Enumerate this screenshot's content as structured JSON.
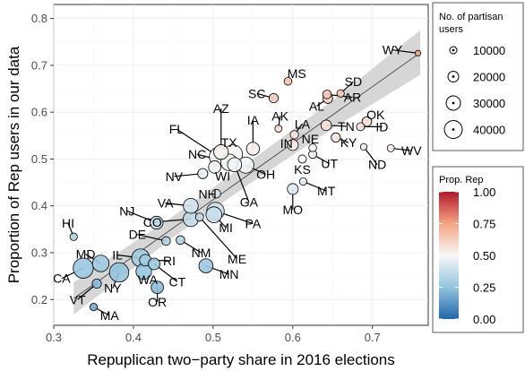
{
  "chart_data": {
    "type": "scatter",
    "xlabel": "Repuplican two−party share in 2016 elections",
    "ylabel": "Proportion of Rep users in our data",
    "xlim": [
      0.3,
      0.77
    ],
    "ylim": [
      0.145,
      0.83
    ],
    "x_ticks": [
      "0.3",
      "0.4",
      "0.5",
      "0.6",
      "0.7"
    ],
    "x_tick_values": [
      0.3,
      0.4,
      0.5,
      0.6,
      0.7
    ],
    "y_ticks": [
      "0.2",
      "0.3",
      "0.4",
      "0.5",
      "0.6",
      "0.7",
      "0.8"
    ],
    "y_tick_values": [
      0.2,
      0.3,
      0.4,
      0.5,
      0.6,
      0.7,
      0.8
    ],
    "grid": true,
    "fit_line": {
      "x": [
        0.325,
        0.76
      ],
      "y": [
        0.202,
        0.727
      ]
    },
    "confidence_band": {
      "x": [
        0.325,
        0.45,
        0.55,
        0.65,
        0.76
      ],
      "lower": [
        0.168,
        0.333,
        0.452,
        0.565,
        0.68
      ],
      "upper": [
        0.237,
        0.378,
        0.5,
        0.625,
        0.775
      ]
    },
    "size_legend": {
      "title_lines": [
        "No. of partisan",
        "users"
      ],
      "values": [
        "10000",
        "20000",
        "30000",
        "40000"
      ],
      "radii": [
        4,
        6,
        8,
        10
      ]
    },
    "color_legend": {
      "title": "Prop. Rep",
      "ticks": [
        "0.00",
        "0.25",
        "0.50",
        "0.75",
        "1.00"
      ],
      "tick_values": [
        0.0,
        0.25,
        0.5,
        0.75,
        1.0
      ],
      "low_color": "#2166ac",
      "mid_color": "#f7f7f7",
      "high_color": "#b2182b"
    },
    "points": [
      {
        "state": "WY",
        "x": 0.757,
        "y": 0.726,
        "users": 1000,
        "lx": 0.725,
        "ly": 0.733
      },
      {
        "state": "SD",
        "x": 0.66,
        "y": 0.64,
        "users": 3000,
        "lx": 0.676,
        "ly": 0.665
      },
      {
        "state": "MS",
        "x": 0.594,
        "y": 0.666,
        "users": 3500,
        "lx": 0.605,
        "ly": 0.683
      },
      {
        "state": "AR",
        "x": 0.643,
        "y": 0.638,
        "users": 5000,
        "lx": 0.675,
        "ly": 0.632
      },
      {
        "state": "AL",
        "x": 0.644,
        "y": 0.629,
        "users": 7000,
        "lx": 0.63,
        "ly": 0.613
      },
      {
        "state": "SC",
        "x": 0.576,
        "y": 0.63,
        "users": 6000,
        "lx": 0.555,
        "ly": 0.64
      },
      {
        "state": "AK",
        "x": 0.582,
        "y": 0.565,
        "users": 2500,
        "lx": 0.584,
        "ly": 0.592
      },
      {
        "state": "OK",
        "x": 0.693,
        "y": 0.58,
        "users": 7000,
        "lx": 0.704,
        "ly": 0.595
      },
      {
        "state": "TN",
        "x": 0.642,
        "y": 0.572,
        "users": 9000,
        "lx": 0.667,
        "ly": 0.57
      },
      {
        "state": "ID",
        "x": 0.685,
        "y": 0.569,
        "users": 4000,
        "lx": 0.712,
        "ly": 0.569
      },
      {
        "state": "LA",
        "x": 0.602,
        "y": 0.552,
        "users": 4500,
        "lx": 0.612,
        "ly": 0.575
      },
      {
        "state": "WV",
        "x": 0.723,
        "y": 0.523,
        "users": 2500,
        "lx": 0.749,
        "ly": 0.518
      },
      {
        "state": "KY",
        "x": 0.654,
        "y": 0.546,
        "users": 6000,
        "lx": 0.67,
        "ly": 0.535
      },
      {
        "state": "ND",
        "x": 0.689,
        "y": 0.526,
        "users": 2000,
        "lx": 0.706,
        "ly": 0.488
      },
      {
        "state": "IN",
        "x": 0.6,
        "y": 0.53,
        "users": 10000,
        "lx": 0.592,
        "ly": 0.533
      },
      {
        "state": "NE",
        "x": 0.625,
        "y": 0.524,
        "users": 3500,
        "lx": 0.622,
        "ly": 0.543
      },
      {
        "state": "UT",
        "x": 0.625,
        "y": 0.51,
        "users": 4000,
        "lx": 0.646,
        "ly": 0.49
      },
      {
        "state": "MO",
        "x": 0.6,
        "y": 0.436,
        "users": 10000,
        "lx": 0.6,
        "ly": 0.392
      },
      {
        "state": "KS",
        "x": 0.612,
        "y": 0.5,
        "users": 4000,
        "lx": 0.612,
        "ly": 0.478
      },
      {
        "state": "MT",
        "x": 0.613,
        "y": 0.452,
        "users": 3000,
        "lx": 0.642,
        "ly": 0.432
      },
      {
        "state": "IA",
        "x": 0.55,
        "y": 0.522,
        "users": 16000,
        "lx": 0.55,
        "ly": 0.583
      },
      {
        "state": "TX",
        "x": 0.525,
        "y": 0.51,
        "users": 42000,
        "lx": 0.52,
        "ly": 0.535
      },
      {
        "state": "AZ",
        "x": 0.51,
        "y": 0.515,
        "users": 22000,
        "lx": 0.51,
        "ly": 0.608
      },
      {
        "state": "FL",
        "x": 0.507,
        "y": 0.505,
        "users": 40000,
        "lx": 0.454,
        "ly": 0.564
      },
      {
        "state": "NC",
        "x": 0.52,
        "y": 0.493,
        "users": 30000,
        "lx": 0.48,
        "ly": 0.51
      },
      {
        "state": "OH",
        "x": 0.541,
        "y": 0.487,
        "users": 28000,
        "lx": 0.566,
        "ly": 0.467
      },
      {
        "state": "GA",
        "x": 0.527,
        "y": 0.488,
        "users": 20000,
        "lx": 0.545,
        "ly": 0.408
      },
      {
        "state": "WI",
        "x": 0.502,
        "y": 0.483,
        "users": 14000,
        "lx": 0.512,
        "ly": 0.464
      },
      {
        "state": "NV",
        "x": 0.487,
        "y": 0.469,
        "users": 8000,
        "lx": 0.451,
        "ly": 0.463
      },
      {
        "state": "NH",
        "x": 0.504,
        "y": 0.426,
        "users": 5000,
        "lx": 0.493,
        "ly": 0.425
      },
      {
        "state": "PA",
        "x": 0.503,
        "y": 0.389,
        "users": 34000,
        "lx": 0.55,
        "ly": 0.362
      },
      {
        "state": "MI",
        "x": 0.501,
        "y": 0.381,
        "users": 27000,
        "lx": 0.516,
        "ly": 0.354
      },
      {
        "state": "VA",
        "x": 0.472,
        "y": 0.4,
        "users": 23000,
        "lx": 0.44,
        "ly": 0.406
      },
      {
        "state": "CO",
        "x": 0.472,
        "y": 0.372,
        "users": 24000,
        "lx": 0.424,
        "ly": 0.365
      },
      {
        "state": "ME",
        "x": 0.483,
        "y": 0.376,
        "users": 4000,
        "lx": 0.53,
        "ly": 0.287
      },
      {
        "state": "NJ",
        "x": 0.429,
        "y": 0.364,
        "users": 16000,
        "lx": 0.392,
        "ly": 0.389
      },
      {
        "state": "DE",
        "x": 0.441,
        "y": 0.325,
        "users": 5000,
        "lx": 0.405,
        "ly": 0.339
      },
      {
        "state": "NM",
        "x": 0.459,
        "y": 0.327,
        "users": 5000,
        "lx": 0.485,
        "ly": 0.3
      },
      {
        "state": "MN",
        "x": 0.491,
        "y": 0.272,
        "users": 20000,
        "lx": 0.52,
        "ly": 0.254
      },
      {
        "state": "IL",
        "x": 0.409,
        "y": 0.289,
        "users": 36000,
        "lx": 0.38,
        "ly": 0.295
      },
      {
        "state": "RI",
        "x": 0.415,
        "y": 0.284,
        "users": 12000,
        "lx": 0.445,
        "ly": 0.283
      },
      {
        "state": "HI",
        "x": 0.325,
        "y": 0.334,
        "users": 3000,
        "lx": 0.318,
        "ly": 0.363
      },
      {
        "state": "MD",
        "x": 0.359,
        "y": 0.277,
        "users": 30000,
        "lx": 0.34,
        "ly": 0.297
      },
      {
        "state": "CA",
        "x": 0.337,
        "y": 0.267,
        "users": 48000,
        "lx": 0.31,
        "ly": 0.245
      },
      {
        "state": "NY",
        "x": 0.382,
        "y": 0.258,
        "users": 44000,
        "lx": 0.374,
        "ly": 0.224
      },
      {
        "state": "WA",
        "x": 0.413,
        "y": 0.26,
        "users": 26000,
        "lx": 0.418,
        "ly": 0.243
      },
      {
        "state": "CT",
        "x": 0.426,
        "y": 0.276,
        "users": 12000,
        "lx": 0.455,
        "ly": 0.238
      },
      {
        "state": "OR",
        "x": 0.43,
        "y": 0.226,
        "users": 14000,
        "lx": 0.43,
        "ly": 0.195
      },
      {
        "state": "VT",
        "x": 0.354,
        "y": 0.234,
        "users": 6000,
        "lx": 0.33,
        "ly": 0.2
      },
      {
        "state": "MA",
        "x": 0.35,
        "y": 0.184,
        "users": 3000,
        "lx": 0.37,
        "ly": 0.166
      }
    ]
  }
}
